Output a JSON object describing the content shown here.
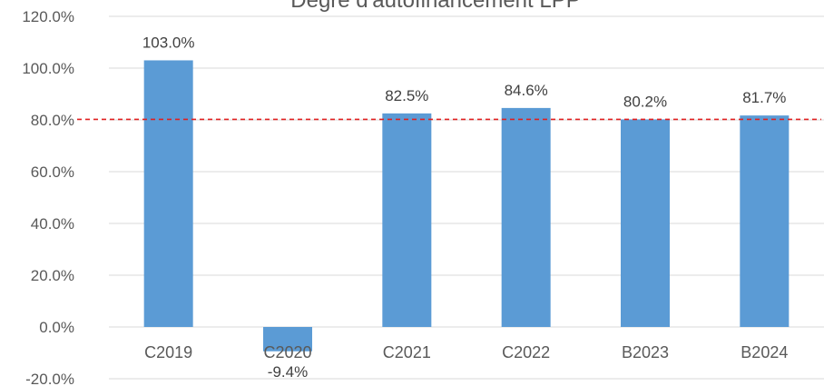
{
  "chart_data": {
    "type": "bar",
    "title": "Degré d'autofinancement LPP",
    "categories": [
      "C2019",
      "C2020",
      "C2021",
      "C2022",
      "B2023",
      "B2024"
    ],
    "values": [
      103.0,
      -9.4,
      82.5,
      84.6,
      80.2,
      81.7
    ],
    "data_labels": [
      "103.0%",
      "-9.4%",
      "82.5%",
      "84.6%",
      "80.2%",
      "81.7%"
    ],
    "ylim": [
      -20,
      120
    ],
    "yticks": [
      -20,
      0,
      20,
      40,
      60,
      80,
      100,
      120
    ],
    "ytick_labels": [
      "-20.0%",
      "0.0%",
      "20.0%",
      "40.0%",
      "60.0%",
      "80.0%",
      "100.0%",
      "120.0%"
    ],
    "reference_line": {
      "value": 80.2,
      "style": "dashed",
      "color": "#e02020"
    },
    "bar_color": "#5b9bd5",
    "grid": true,
    "grid_color": "#d9d9d9"
  }
}
